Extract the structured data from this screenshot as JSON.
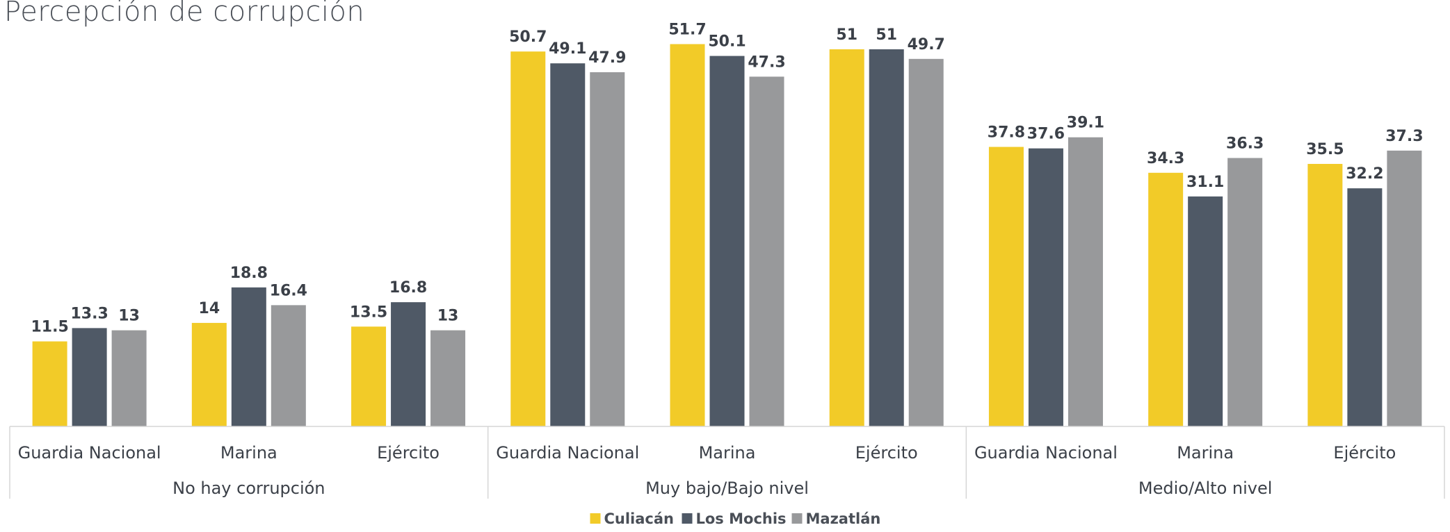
{
  "chart_data": {
    "type": "bar",
    "title": "Percepción de corrupción",
    "groups": [
      {
        "label": "No hay corrupción",
        "categories": [
          "Guardia Nacional",
          "Marina",
          "Ejército"
        ]
      },
      {
        "label": "Muy bajo/Bajo nivel",
        "categories": [
          "Guardia Nacional",
          "Marina",
          "Ejército"
        ]
      },
      {
        "label": "Medio/Alto nivel",
        "categories": [
          "Guardia Nacional",
          "Marina",
          "Ejército"
        ]
      }
    ],
    "series": [
      {
        "name": "Culiacán",
        "color": "#f2cb28",
        "values": [
          11.5,
          14,
          13.5,
          50.7,
          51.7,
          51,
          37.8,
          34.3,
          35.5
        ]
      },
      {
        "name": "Los Mochis",
        "color": "#4f5966",
        "values": [
          13.3,
          18.8,
          16.8,
          49.1,
          50.1,
          51,
          37.6,
          31.1,
          32.2
        ]
      },
      {
        "name": "Mazatlán",
        "color": "#98999b",
        "values": [
          13,
          16.4,
          13,
          47.9,
          47.3,
          49.7,
          39.1,
          36.3,
          37.3
        ]
      }
    ],
    "ylim": [
      0,
      52.5
    ],
    "grid": false,
    "legend": "bottom-center",
    "data_labels": true
  }
}
